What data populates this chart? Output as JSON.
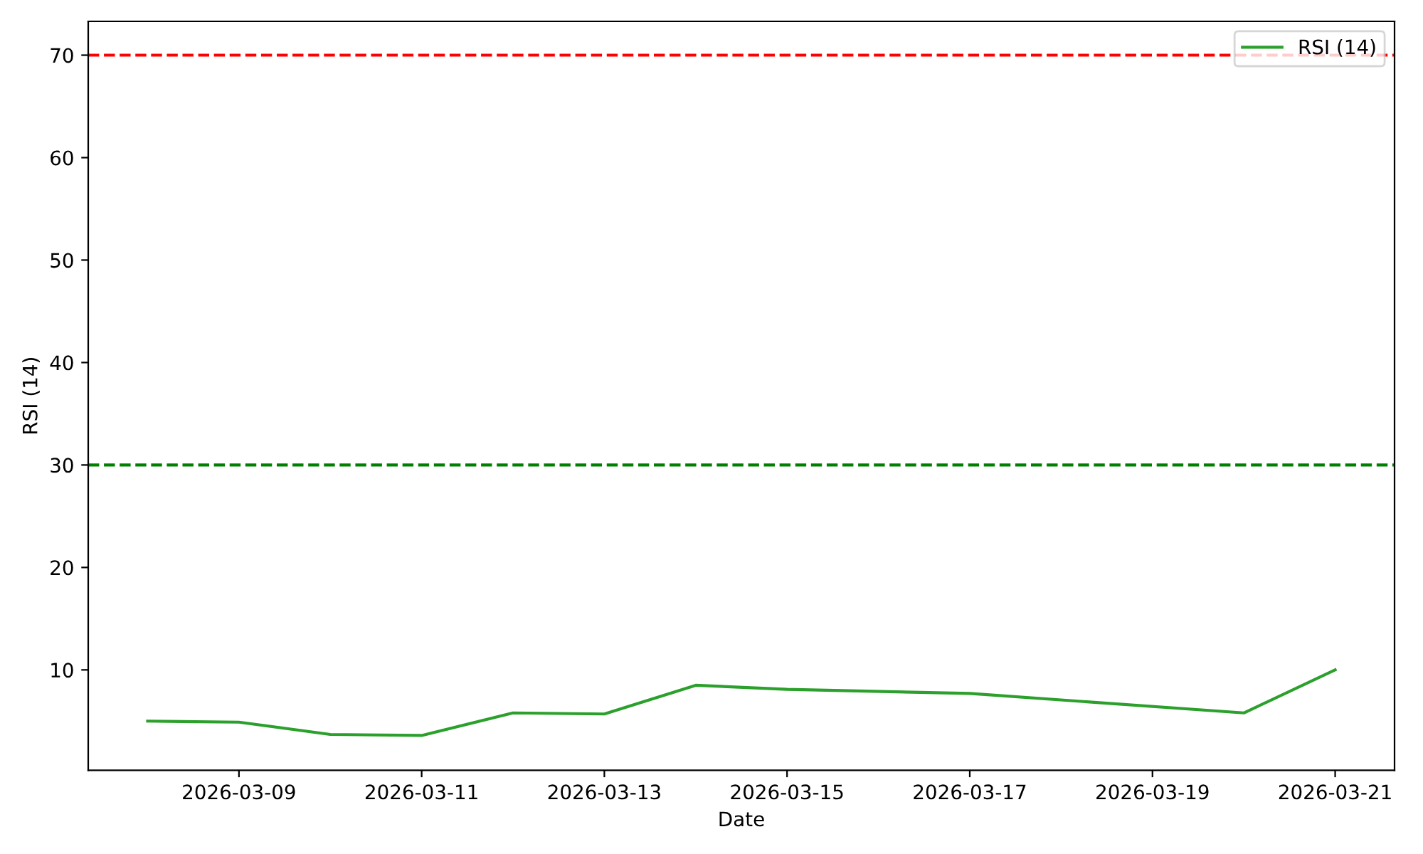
{
  "chart_data": {
    "type": "line",
    "xlabel": "Date",
    "ylabel": "RSI (14)",
    "x": [
      "2026-03-08",
      "2026-03-09",
      "2026-03-10",
      "2026-03-11",
      "2026-03-12",
      "2026-03-13",
      "2026-03-14",
      "2026-03-15",
      "2026-03-17",
      "2026-03-20",
      "2026-03-21"
    ],
    "series": [
      {
        "name": "RSI (14)",
        "color": "#2ca02c",
        "values": [
          5.0,
          4.9,
          3.7,
          3.6,
          5.8,
          5.7,
          8.5,
          8.1,
          7.7,
          5.8,
          10.0
        ]
      }
    ],
    "xlim": [
      "2026-03-07T08:24",
      "2026-03-21T15:36"
    ],
    "xticks": [
      "2026-03-09",
      "2026-03-11",
      "2026-03-13",
      "2026-03-15",
      "2026-03-17",
      "2026-03-19",
      "2026-03-21"
    ],
    "ylim": [
      0.2,
      73.3
    ],
    "yticks": [
      10,
      20,
      30,
      40,
      50,
      60,
      70
    ],
    "ref_lines": [
      {
        "axis": "y",
        "value": 70,
        "color": "#ff0000",
        "line_style": "dashed"
      },
      {
        "axis": "y",
        "value": 30,
        "color": "#008000",
        "line_style": "dashed"
      }
    ],
    "legend": "top right",
    "grid": false,
    "marker": "none",
    "line_style": "solid"
  }
}
